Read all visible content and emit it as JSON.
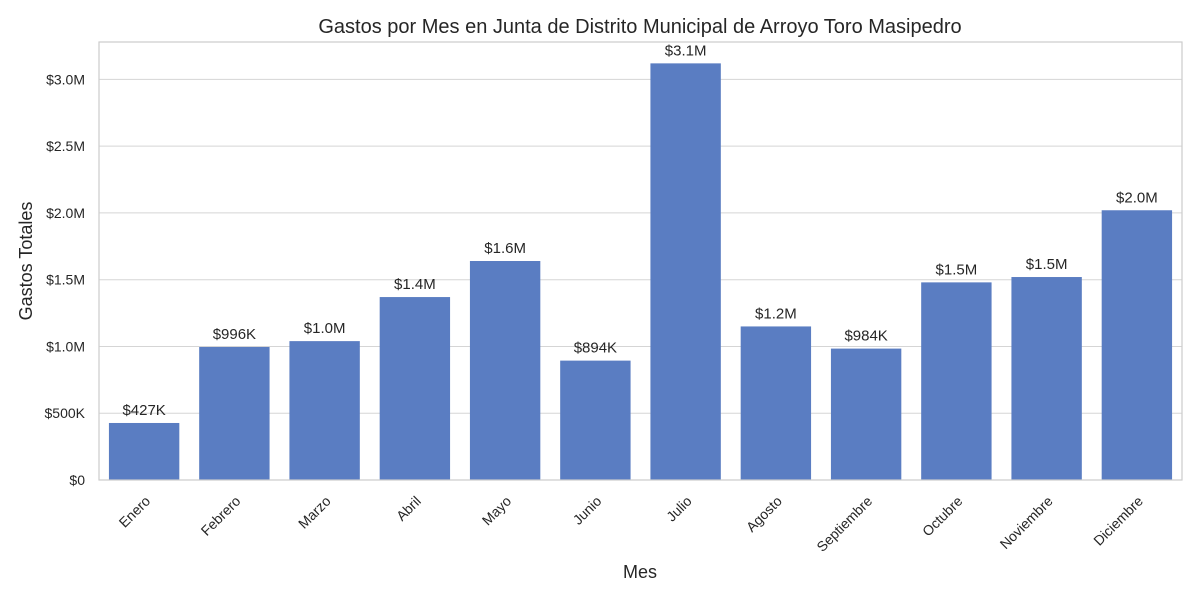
{
  "chart_data": {
    "type": "bar",
    "title": "Gastos por Mes en Junta de Distrito Municipal de Arroyo Toro Masipedro",
    "xlabel": "Mes",
    "ylabel": "Gastos Totales",
    "categories": [
      "Enero",
      "Febrero",
      "Marzo",
      "Abril",
      "Mayo",
      "Junio",
      "Julio",
      "Agosto",
      "Septiembre",
      "Octubre",
      "Noviembre",
      "Diciembre"
    ],
    "values": [
      427000,
      996000,
      1040000,
      1370000,
      1640000,
      894000,
      3120000,
      1150000,
      984000,
      1480000,
      1520000,
      2020000
    ],
    "data_labels": [
      "$427K",
      "$996K",
      "$1.0M",
      "$1.4M",
      "$1.6M",
      "$894K",
      "$3.1M",
      "$1.2M",
      "$984K",
      "$1.5M",
      "$1.5M",
      "$2.0M"
    ],
    "yticks": [
      0,
      500000,
      1000000,
      1500000,
      2000000,
      2500000,
      3000000
    ],
    "ytick_labels": [
      "$0",
      "$500K",
      "$1.0M",
      "$1.5M",
      "$2.0M",
      "$2.5M",
      "$3.0M"
    ],
    "ylim": [
      0,
      3280000
    ],
    "grid": true,
    "color": "#5a7dc2"
  }
}
